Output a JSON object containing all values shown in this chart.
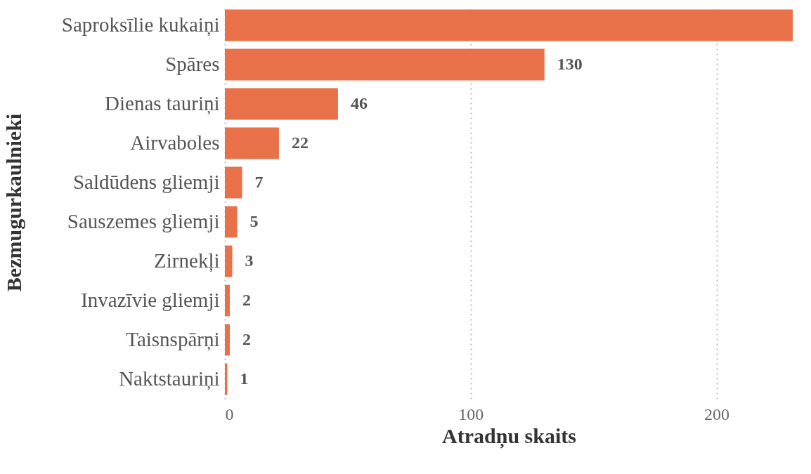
{
  "chart_data": {
    "type": "bar",
    "orientation": "horizontal",
    "xlabel": "Atradņu skaits",
    "ylabel": "Bezmugurkaulnieki",
    "categories": [
      "Saproksīlie kukaiņi",
      "Spāres",
      "Dienas tauriņi",
      "Airvaboles",
      "Saldūdens gliemji",
      "Sauszemes gliemji",
      "Zirnekļi",
      "Invazīvie gliemji",
      "Taisnspārņi",
      "Naktstauriņi"
    ],
    "values": [
      231,
      130,
      46,
      22,
      7,
      5,
      3,
      2,
      2,
      1
    ],
    "value_labels": [
      null,
      "130",
      "46",
      "22",
      "7",
      "5",
      "3",
      "2",
      "2",
      "1"
    ],
    "color": "#e8714a",
    "xlim": [
      0,
      231
    ],
    "xticks": [
      0,
      100,
      200
    ],
    "grid": "x"
  }
}
